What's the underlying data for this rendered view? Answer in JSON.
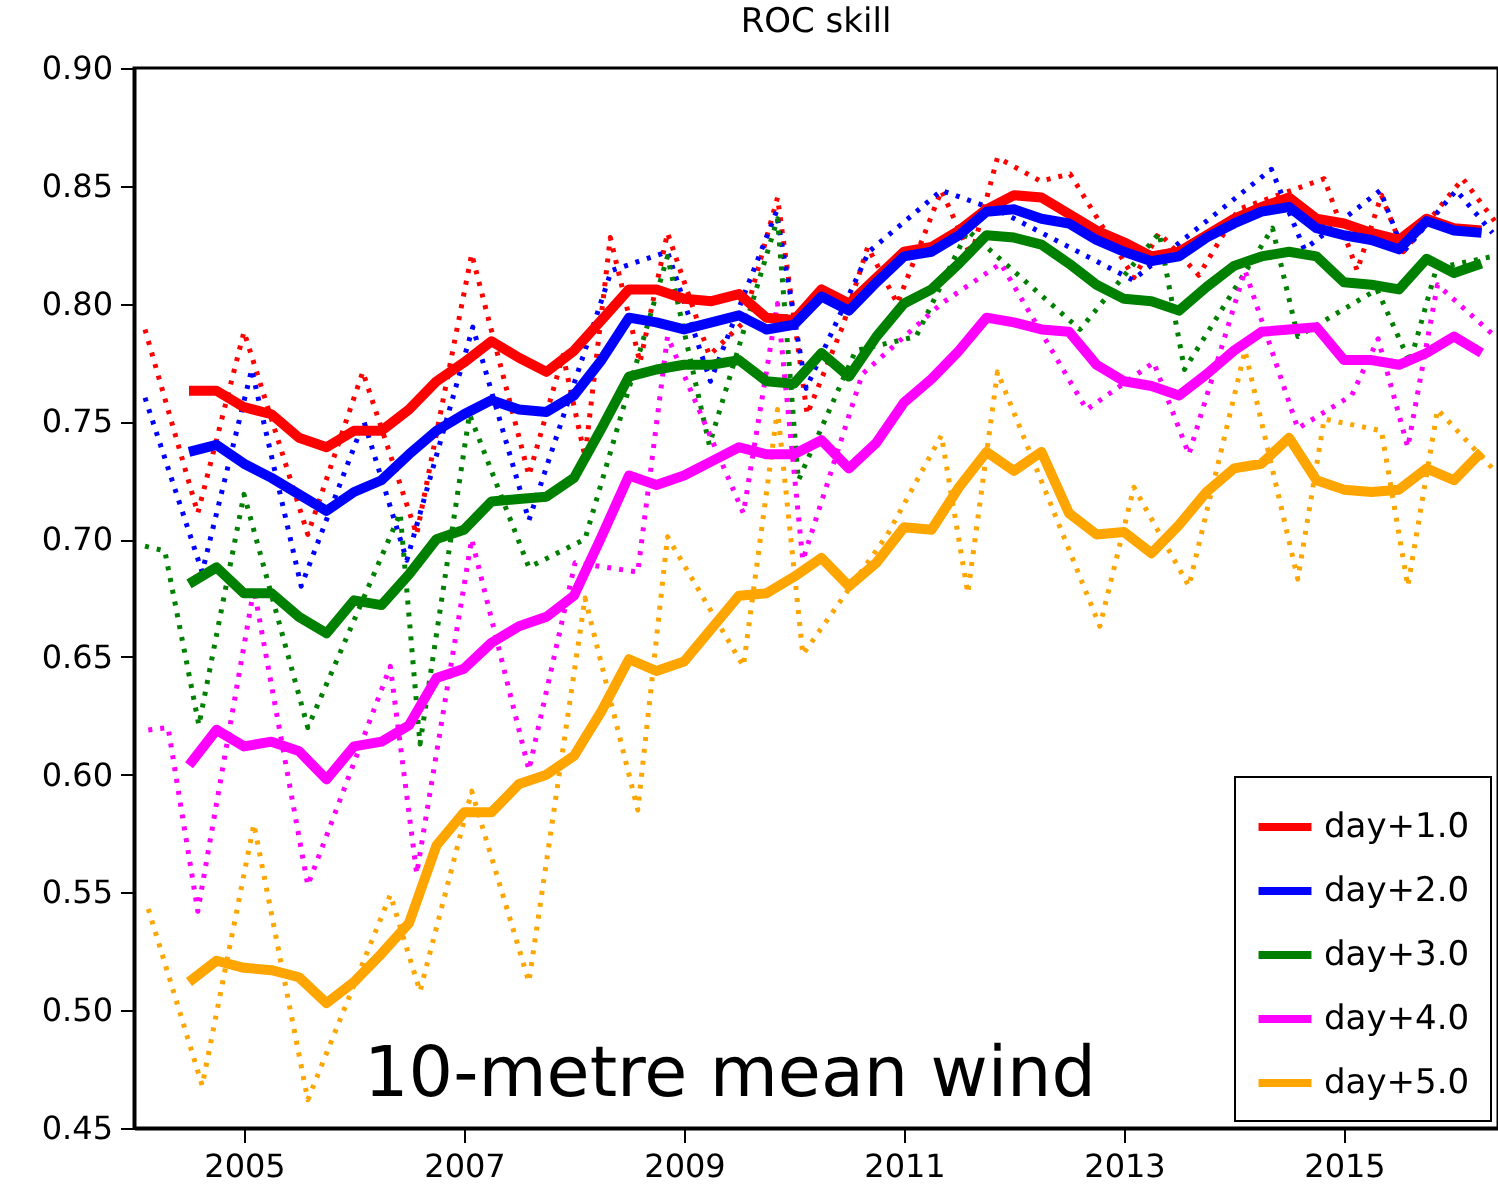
{
  "chart_data": {
    "type": "line",
    "title": "ROC skill",
    "annotations": [
      "10-metre mean wind"
    ],
    "x": [
      2004.5,
      2004.75,
      2005,
      2005.25,
      2005.5,
      2005.75,
      2006,
      2006.25,
      2006.5,
      2006.75,
      2007,
      2007.25,
      2007.5,
      2007.75,
      2008,
      2008.25,
      2008.5,
      2008.75,
      2009,
      2009.25,
      2009.5,
      2009.75,
      2010,
      2010.25,
      2010.5,
      2010.75,
      2011,
      2011.25,
      2011.5,
      2011.75,
      2012,
      2012.25,
      2012.5,
      2012.75,
      2013,
      2013.25,
      2013.5,
      2013.75,
      2014,
      2014.25,
      2014.5,
      2014.75,
      2015,
      2015.25,
      2015.5,
      2015.75,
      2016,
      2016.25
    ],
    "series": [
      {
        "name": "day+1.0",
        "color": "#ff0000",
        "line_style": "solid",
        "values": [
          0.763,
          0.763,
          0.756,
          0.753,
          0.743,
          0.739,
          0.746,
          0.746,
          0.755,
          0.767,
          0.775,
          0.784,
          0.777,
          0.771,
          0.78,
          0.793,
          0.806,
          0.806,
          0.802,
          0.801,
          0.804,
          0.794,
          0.793,
          0.806,
          0.8,
          0.811,
          0.822,
          0.824,
          0.831,
          0.84,
          0.846,
          0.845,
          0.838,
          0.831,
          0.826,
          0.82,
          0.822,
          0.829,
          0.836,
          0.841,
          0.845,
          0.836,
          0.834,
          0.83,
          0.827,
          0.836,
          0.832,
          0.831
        ]
      },
      {
        "name": "day+2.0",
        "color": "#0000ff",
        "line_style": "solid",
        "values": [
          0.737,
          0.74,
          0.732,
          0.726,
          0.719,
          0.712,
          0.72,
          0.725,
          0.736,
          0.746,
          0.753,
          0.759,
          0.755,
          0.754,
          0.761,
          0.776,
          0.794,
          0.792,
          0.789,
          0.792,
          0.795,
          0.789,
          0.791,
          0.803,
          0.797,
          0.809,
          0.82,
          0.822,
          0.829,
          0.839,
          0.84,
          0.836,
          0.834,
          0.827,
          0.822,
          0.818,
          0.82,
          0.828,
          0.834,
          0.839,
          0.841,
          0.832,
          0.829,
          0.827,
          0.823,
          0.835,
          0.831,
          0.83
        ]
      },
      {
        "name": "day+3.0",
        "color": "#008000",
        "line_style": "solid",
        "values": [
          0.681,
          0.688,
          0.677,
          0.677,
          0.667,
          0.66,
          0.674,
          0.672,
          0.685,
          0.7,
          0.704,
          0.716,
          0.717,
          0.718,
          0.726,
          0.747,
          0.769,
          0.772,
          0.774,
          0.774,
          0.776,
          0.767,
          0.766,
          0.779,
          0.769,
          0.786,
          0.8,
          0.806,
          0.817,
          0.829,
          0.828,
          0.825,
          0.817,
          0.808,
          0.802,
          0.801,
          0.797,
          0.807,
          0.816,
          0.82,
          0.822,
          0.82,
          0.809,
          0.808,
          0.806,
          0.819,
          0.813,
          0.817
        ]
      },
      {
        "name": "day+4.0",
        "color": "#ff00ff",
        "line_style": "solid",
        "values": [
          0.604,
          0.619,
          0.612,
          0.614,
          0.61,
          0.598,
          0.612,
          0.614,
          0.621,
          0.641,
          0.645,
          0.656,
          0.663,
          0.667,
          0.676,
          0.701,
          0.727,
          0.723,
          0.727,
          0.733,
          0.739,
          0.736,
          0.736,
          0.742,
          0.73,
          0.741,
          0.758,
          0.768,
          0.78,
          0.794,
          0.792,
          0.789,
          0.788,
          0.774,
          0.767,
          0.765,
          0.761,
          0.77,
          0.78,
          0.788,
          0.789,
          0.79,
          0.776,
          0.776,
          0.774,
          0.779,
          0.786,
          0.779
        ]
      },
      {
        "name": "day+5.0",
        "color": "#ffa500",
        "line_style": "solid",
        "values": [
          0.512,
          0.521,
          0.518,
          0.517,
          0.514,
          0.503,
          0.512,
          0.524,
          0.537,
          0.57,
          0.584,
          0.584,
          0.596,
          0.6,
          0.608,
          0.627,
          0.649,
          0.644,
          0.648,
          0.662,
          0.676,
          0.677,
          0.684,
          0.692,
          0.68,
          0.69,
          0.705,
          0.704,
          0.722,
          0.737,
          0.729,
          0.737,
          0.711,
          0.702,
          0.703,
          0.694,
          0.706,
          0.72,
          0.73,
          0.732,
          0.743,
          0.725,
          0.721,
          0.72,
          0.721,
          0.73,
          0.725,
          0.737
        ]
      },
      {
        "color": "#ff0000",
        "line_style": "dotted",
        "x": [
          2004.1,
          2004.58,
          2005.0,
          2005.58,
          2006.08,
          2006.57,
          2007.07,
          2007.59,
          2007.9,
          2008.1,
          2008.33,
          2008.6,
          2008.85,
          2009.23,
          2009.54,
          2009.85,
          2010.12,
          2010.44,
          2010.67,
          2010.94,
          2011.34,
          2011.61,
          2011.85,
          2012.24,
          2012.51,
          2013.09,
          2013.32,
          2013.68,
          2014.04,
          2014.82,
          2015.12,
          2015.34,
          2015.54,
          2016.08,
          2016.37
        ],
        "values": [
          0.789,
          0.711,
          0.788,
          0.702,
          0.771,
          0.702,
          0.821,
          0.727,
          0.778,
          0.735,
          0.828,
          0.775,
          0.83,
          0.778,
          0.792,
          0.845,
          0.753,
          0.79,
          0.824,
          0.8,
          0.848,
          0.82,
          0.862,
          0.852,
          0.855,
          0.811,
          0.83,
          0.812,
          0.84,
          0.853,
          0.814,
          0.846,
          0.822,
          0.853,
          0.835
        ]
      },
      {
        "color": "#0000ff",
        "line_style": "dotted",
        "x": [
          2004.1,
          2004.62,
          2005.07,
          2005.52,
          2006.09,
          2006.48,
          2007.08,
          2007.59,
          2008.34,
          2008.85,
          2009.24,
          2009.84,
          2010.11,
          2010.68,
          2011.34,
          2011.88,
          2013.08,
          2014.34,
          2014.64,
          2015.33,
          2015.54,
          2016.02,
          2016.35
        ],
        "values": [
          0.76,
          0.686,
          0.772,
          0.68,
          0.75,
          0.691,
          0.79,
          0.708,
          0.814,
          0.822,
          0.767,
          0.839,
          0.764,
          0.822,
          0.848,
          0.839,
          0.81,
          0.857,
          0.823,
          0.848,
          0.822,
          0.848,
          0.83
        ]
      },
      {
        "color": "#008000",
        "line_style": "dotted",
        "x": [
          2004.1,
          2004.28,
          2004.59,
          2005.0,
          2005.58,
          2006.42,
          2006.6,
          2007.05,
          2007.59,
          2008.1,
          2008.85,
          2009.23,
          2009.85,
          2010.04,
          2010.56,
          2011.11,
          2011.58,
          2012.6,
          2013.32,
          2013.55,
          2014.35,
          2014.58,
          2015.3,
          2015.6,
          2015.84,
          2016.35
        ],
        "values": [
          0.697,
          0.695,
          0.621,
          0.719,
          0.62,
          0.711,
          0.613,
          0.753,
          0.688,
          0.7,
          0.82,
          0.74,
          0.836,
          0.725,
          0.78,
          0.786,
          0.831,
          0.789,
          0.83,
          0.772,
          0.832,
          0.786,
          0.806,
          0.775,
          0.815,
          0.82
        ]
      },
      {
        "color": "#ff00ff",
        "line_style": "dotted",
        "x": [
          2004.13,
          2004.31,
          2004.58,
          2005.09,
          2005.58,
          2006.33,
          2006.57,
          2007.07,
          2007.59,
          2008.01,
          2008.58,
          2008.85,
          2009.54,
          2009.85,
          2010.08,
          2010.62,
          2011.34,
          2011.88,
          2012.66,
          2013.27,
          2013.59,
          2014.1,
          2014.58,
          2015.07,
          2015.31,
          2015.58,
          2015.85,
          2016.35
        ],
        "values": [
          0.619,
          0.62,
          0.542,
          0.679,
          0.553,
          0.646,
          0.558,
          0.7,
          0.602,
          0.69,
          0.686,
          0.786,
          0.711,
          0.8,
          0.691,
          0.77,
          0.8,
          0.817,
          0.755,
          0.775,
          0.736,
          0.814,
          0.747,
          0.761,
          0.785,
          0.739,
          0.808,
          0.787
        ]
      },
      {
        "color": "#ffa500",
        "line_style": "dotted",
        "x": [
          2004.13,
          2004.62,
          2005.09,
          2005.58,
          2006.33,
          2006.6,
          2007.07,
          2007.59,
          2008.1,
          2008.58,
          2008.85,
          2009.54,
          2009.85,
          2010.08,
          2010.85,
          2011.34,
          2011.58,
          2011.85,
          2012.78,
          2013.09,
          2013.59,
          2014.1,
          2014.58,
          2014.82,
          2015.34,
          2015.58,
          2015.85,
          2016.35
        ],
        "values": [
          0.543,
          0.468,
          0.579,
          0.462,
          0.549,
          0.508,
          0.593,
          0.512,
          0.675,
          0.585,
          0.701,
          0.646,
          0.755,
          0.651,
          0.702,
          0.744,
          0.677,
          0.771,
          0.663,
          0.722,
          0.68,
          0.78,
          0.683,
          0.751,
          0.746,
          0.68,
          0.755,
          0.73
        ]
      }
    ],
    "xlim": [
      2004,
      2016.4
    ],
    "xticks": [
      2005,
      2007,
      2009,
      2011,
      2013,
      2015
    ],
    "ylim": [
      0.45,
      0.9
    ],
    "yticks": [
      0.45,
      {
        "value": 0.5,
        "label": "0.50"
      },
      0.55,
      {
        "value": 0.6,
        "label": "0.60"
      },
      0.65,
      {
        "value": 0.7,
        "label": "0.70"
      },
      0.75,
      {
        "value": 0.8,
        "label": "0.80"
      },
      0.85,
      {
        "value": 0.9,
        "label": "0.90"
      }
    ],
    "grid": false,
    "legend": "bottom right"
  }
}
